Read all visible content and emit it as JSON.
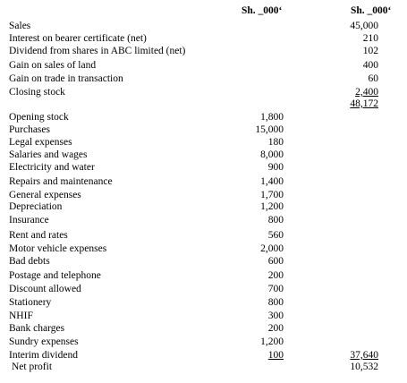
{
  "headers": {
    "col1": "Sh. _000‘",
    "col2": "Sh. _000‘"
  },
  "income": [
    {
      "label": "Sales",
      "col2": "45,000"
    },
    {
      "label": "Interest on bearer certificate (net)",
      "col2": "210"
    },
    {
      "label": "Dividend from shares in ABC limited (net)",
      "col2": "102"
    },
    {
      "label": "Gain on sales of land",
      "col2": "400"
    },
    {
      "label": "Gain on trade in transaction",
      "col2": "60"
    },
    {
      "label": "Closing stock",
      "col2": "2,400"
    },
    {
      "label": "",
      "col2": "48,172"
    }
  ],
  "expenses": [
    {
      "label": "Opening stock",
      "col1": "1,800"
    },
    {
      "label": "Purchases",
      "col1": "15,000"
    },
    {
      "label": "Legal expenses",
      "col1": "180"
    },
    {
      "label": "Salaries and wages",
      "col1": "8,000"
    },
    {
      "label": "Electricity and water",
      "col1": "900"
    },
    {
      "label": "Repairs and maintenance",
      "col1": "1,400"
    },
    {
      "label": "General expenses",
      "col1": "1,700"
    },
    {
      "label": "Depreciation",
      "col1": "1,200"
    },
    {
      "label": "Insurance",
      "col1": "800"
    },
    {
      "label": "Rent and rates",
      "col1": "560"
    },
    {
      "label": "Motor vehicle expenses",
      "col1": "2,000"
    },
    {
      "label": "Bad debts",
      "col1": "600"
    },
    {
      "label": "Postage and telephone",
      "col1": "200"
    },
    {
      "label": "Discount allowed",
      "col1": "700"
    },
    {
      "label": "Stationery",
      "col1": "800"
    },
    {
      "label": "NHIF",
      "col1": "300"
    },
    {
      "label": "Bank charges",
      "col1": "200"
    },
    {
      "label": "Sundry expenses",
      "col1": "1,200"
    },
    {
      "label": "Interim dividend",
      "col1": "100",
      "col2": "37,640"
    }
  ],
  "net_profit": {
    "label": "Net profit",
    "col2": "10,532"
  }
}
